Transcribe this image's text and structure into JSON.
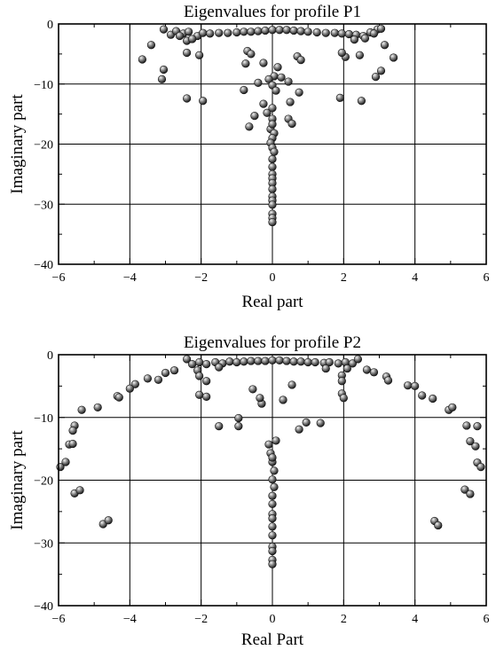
{
  "chart_data": [
    {
      "type": "scatter",
      "title": "Eigenvalues for profile P1",
      "xlabel": "Real part",
      "ylabel": "Imaginary part",
      "xlim": [
        -6,
        6
      ],
      "ylim": [
        -40,
        0
      ],
      "xticks": [
        -6,
        -4,
        -2,
        0,
        2,
        4,
        6
      ],
      "yticks": [
        0,
        -10,
        -20,
        -30,
        -40
      ],
      "xtick_labels": [
        "−6",
        "−4",
        "−2",
        "0",
        "2",
        "4",
        "6"
      ],
      "ytick_labels": [
        "0",
        "−10",
        "−20",
        "−30",
        "−40"
      ],
      "grid": true,
      "series": [
        {
          "points": [
            [
              -3.05,
              -0.9
            ],
            [
              -2.85,
              -1.8
            ],
            [
              -2.7,
              -1.2
            ],
            [
              -2.5,
              -1.6
            ],
            [
              -2.35,
              -1.3
            ],
            [
              -2.1,
              -2.0
            ],
            [
              -1.95,
              -1.5
            ],
            [
              -1.75,
              -1.6
            ],
            [
              -1.5,
              -1.5
            ],
            [
              -1.25,
              -1.5
            ],
            [
              -1.0,
              -1.4
            ],
            [
              -0.8,
              -1.3
            ],
            [
              -0.6,
              -1.3
            ],
            [
              -0.4,
              -1.2
            ],
            [
              -0.2,
              -1.1
            ],
            [
              0.0,
              -1.0
            ],
            [
              0.2,
              -1.0
            ],
            [
              0.4,
              -1.0
            ],
            [
              0.6,
              -1.1
            ],
            [
              0.8,
              -1.2
            ],
            [
              1.0,
              -1.3
            ],
            [
              1.25,
              -1.4
            ],
            [
              1.5,
              -1.5
            ],
            [
              1.75,
              -1.5
            ],
            [
              1.95,
              -1.6
            ],
            [
              2.15,
              -1.7
            ],
            [
              2.35,
              -1.8
            ],
            [
              2.55,
              -2.0
            ],
            [
              2.75,
              -1.4
            ],
            [
              2.95,
              -0.9
            ],
            [
              3.05,
              -0.8
            ],
            [
              -2.4,
              -2.8
            ],
            [
              -2.25,
              -2.5
            ],
            [
              -2.6,
              -2.0
            ],
            [
              2.3,
              -2.6
            ],
            [
              2.6,
              -2.4
            ],
            [
              2.85,
              -1.6
            ],
            [
              -3.4,
              -3.5
            ],
            [
              -2.4,
              -4.8
            ],
            [
              -2.05,
              -5.2
            ],
            [
              2.45,
              -5.2
            ],
            [
              3.15,
              -3.5
            ],
            [
              3.4,
              -5.6
            ],
            [
              2.05,
              -5.5
            ],
            [
              1.95,
              -4.8
            ],
            [
              -3.65,
              -5.9
            ],
            [
              -3.05,
              -7.6
            ],
            [
              -3.1,
              -9.2
            ],
            [
              3.05,
              -7.8
            ],
            [
              2.9,
              -8.8
            ],
            [
              -0.7,
              -4.5
            ],
            [
              -0.6,
              -5.0
            ],
            [
              0.7,
              -5.4
            ],
            [
              0.8,
              -6.0
            ],
            [
              -0.25,
              -6.5
            ],
            [
              0.15,
              -7.2
            ],
            [
              -0.75,
              -6.6
            ],
            [
              0.05,
              -8.7
            ],
            [
              0.25,
              -8.9
            ],
            [
              -0.1,
              -9.2
            ],
            [
              -0.4,
              -9.8
            ],
            [
              0.45,
              -9.6
            ],
            [
              0.0,
              -10.2
            ],
            [
              -0.8,
              -11.0
            ],
            [
              0.75,
              -11.4
            ],
            [
              0.1,
              -11.1
            ],
            [
              -2.4,
              -12.4
            ],
            [
              -1.95,
              -12.8
            ],
            [
              1.9,
              -12.3
            ],
            [
              2.5,
              -12.8
            ],
            [
              -0.25,
              -13.3
            ],
            [
              0.5,
              -13.0
            ],
            [
              -0.5,
              -15.3
            ],
            [
              0.45,
              -15.8
            ],
            [
              0.55,
              -16.6
            ],
            [
              -0.65,
              -17.1
            ],
            [
              -0.15,
              -14.8
            ],
            [
              0.0,
              -15.8
            ],
            [
              -0.05,
              -17.5
            ],
            [
              0.05,
              -18.2
            ],
            [
              0.0,
              -19.0
            ],
            [
              -0.05,
              -19.8
            ],
            [
              0.0,
              -20.6
            ],
            [
              0.05,
              -21.3
            ],
            [
              0.0,
              -22.5
            ],
            [
              0.0,
              -23.8
            ],
            [
              0.0,
              -25.0
            ],
            [
              0.0,
              -25.7
            ],
            [
              0.0,
              -26.5
            ],
            [
              0.0,
              -27.5
            ],
            [
              0.0,
              -28.7
            ],
            [
              0.0,
              -29.4
            ],
            [
              0.0,
              -30.1
            ],
            [
              0.0,
              -31.6
            ],
            [
              0.0,
              -32.3
            ],
            [
              0.0,
              -33.0
            ],
            [
              0.0,
              -14.0
            ],
            [
              0.0,
              -16.7
            ]
          ]
        }
      ]
    },
    {
      "type": "scatter",
      "title": "Eigenvalues for profile P2",
      "xlabel": "Real Part",
      "ylabel": "Imaginary part",
      "xlim": [
        -6,
        6
      ],
      "ylim": [
        -40,
        0
      ],
      "xticks": [
        -6,
        -4,
        -2,
        0,
        2,
        4,
        6
      ],
      "yticks": [
        0,
        -10,
        -20,
        -30,
        -40
      ],
      "xtick_labels": [
        "−6",
        "−4",
        "−2",
        "0",
        "2",
        "4",
        "6"
      ],
      "ytick_labels": [
        "0",
        "−10",
        "−20",
        "−30",
        "−40"
      ],
      "grid": true,
      "series": [
        {
          "points": [
            [
              -2.4,
              -0.7
            ],
            [
              -2.25,
              -1.5
            ],
            [
              -2.05,
              -1.2
            ],
            [
              -1.85,
              -1.5
            ],
            [
              -1.6,
              -1.2
            ],
            [
              -1.4,
              -1.4
            ],
            [
              -1.2,
              -1.1
            ],
            [
              -1.0,
              -1.2
            ],
            [
              -0.8,
              -1.1
            ],
            [
              -0.6,
              -1.0
            ],
            [
              -0.4,
              -1.0
            ],
            [
              -0.2,
              -1.0
            ],
            [
              0.0,
              -0.9
            ],
            [
              0.2,
              -0.9
            ],
            [
              0.4,
              -1.0
            ],
            [
              0.6,
              -1.1
            ],
            [
              0.8,
              -1.1
            ],
            [
              1.0,
              -1.2
            ],
            [
              1.2,
              -1.2
            ],
            [
              1.45,
              -1.3
            ],
            [
              1.6,
              -1.2
            ],
            [
              1.85,
              -1.4
            ],
            [
              2.05,
              -1.2
            ],
            [
              2.25,
              -1.4
            ],
            [
              2.4,
              -0.7
            ],
            [
              -2.1,
              -2.5
            ],
            [
              -1.5,
              -2.0
            ],
            [
              1.5,
              -2.2
            ],
            [
              2.1,
              -2.2
            ],
            [
              -2.75,
              -2.5
            ],
            [
              -3.0,
              -2.9
            ],
            [
              2.65,
              -2.4
            ],
            [
              2.85,
              -2.8
            ],
            [
              -3.5,
              -3.8
            ],
            [
              -3.2,
              -4.0
            ],
            [
              3.2,
              -3.5
            ],
            [
              3.25,
              -4.1
            ],
            [
              -3.85,
              -4.7
            ],
            [
              -4.0,
              -5.4
            ],
            [
              3.8,
              -4.9
            ],
            [
              4.0,
              -5.0
            ],
            [
              -2.05,
              -3.4
            ],
            [
              -1.85,
              -4.2
            ],
            [
              1.95,
              -3.3
            ],
            [
              1.95,
              -4.2
            ],
            [
              -2.05,
              -6.4
            ],
            [
              -1.85,
              -6.7
            ],
            [
              1.95,
              -6.2
            ],
            [
              2.0,
              -6.9
            ],
            [
              -4.35,
              -6.6
            ],
            [
              -4.3,
              -6.8
            ],
            [
              4.2,
              -6.5
            ],
            [
              4.5,
              -7.0
            ],
            [
              -0.55,
              -5.5
            ],
            [
              0.55,
              -4.8
            ],
            [
              -0.3,
              -7.8
            ],
            [
              0.3,
              -7.2
            ],
            [
              -0.35,
              -6.9
            ],
            [
              -4.9,
              -8.4
            ],
            [
              -5.35,
              -8.8
            ],
            [
              4.95,
              -8.8
            ],
            [
              5.05,
              -8.4
            ],
            [
              -1.5,
              -11.4
            ],
            [
              -0.95,
              -10.1
            ],
            [
              -0.95,
              -11.4
            ],
            [
              0.75,
              -11.9
            ],
            [
              0.95,
              -10.8
            ],
            [
              1.35,
              -10.9
            ],
            [
              -5.55,
              -11.3
            ],
            [
              -5.6,
              -12.1
            ],
            [
              5.45,
              -11.3
            ],
            [
              5.75,
              -11.4
            ],
            [
              -5.7,
              -14.3
            ],
            [
              -5.6,
              -14.2
            ],
            [
              5.55,
              -13.8
            ],
            [
              5.7,
              -14.6
            ],
            [
              -5.95,
              -17.9
            ],
            [
              -5.8,
              -17.1
            ],
            [
              5.75,
              -17.2
            ],
            [
              5.85,
              -17.9
            ],
            [
              -5.55,
              -22.1
            ],
            [
              -5.4,
              -21.6
            ],
            [
              5.4,
              -21.5
            ],
            [
              5.55,
              -22.2
            ],
            [
              -4.75,
              -27.0
            ],
            [
              -4.6,
              -26.4
            ],
            [
              4.55,
              -26.5
            ],
            [
              4.65,
              -27.2
            ],
            [
              -0.1,
              -14.3
            ],
            [
              0.1,
              -13.7
            ],
            [
              -0.05,
              -15.7
            ],
            [
              0.0,
              -17.1
            ],
            [
              0.05,
              -18.5
            ],
            [
              0.0,
              -19.9
            ],
            [
              0.05,
              -21.1
            ],
            [
              0.0,
              -22.5
            ],
            [
              0.0,
              -23.8
            ],
            [
              0.0,
              -25.4
            ],
            [
              0.0,
              -26.1
            ],
            [
              0.0,
              -27.4
            ],
            [
              0.0,
              -28.8
            ],
            [
              0.0,
              -30.6
            ],
            [
              0.0,
              -31.3
            ],
            [
              0.0,
              -32.7
            ],
            [
              0.0,
              -33.4
            ],
            [
              0.0,
              -16.4
            ]
          ]
        }
      ]
    }
  ]
}
